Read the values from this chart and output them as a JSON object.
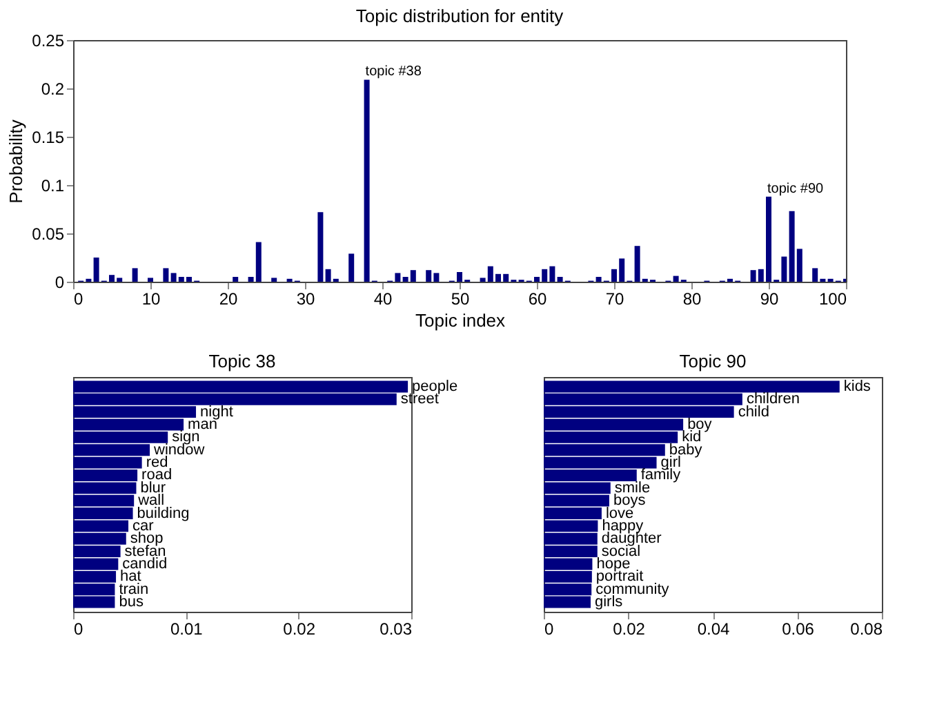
{
  "chart_data": [
    {
      "type": "bar",
      "title": "Topic distribution for entity",
      "xlabel": "Topic index",
      "ylabel": "Probability",
      "color": "#000080",
      "x": [
        1,
        2,
        3,
        4,
        5,
        6,
        7,
        8,
        9,
        10,
        11,
        12,
        13,
        14,
        15,
        16,
        17,
        18,
        19,
        20,
        21,
        22,
        23,
        24,
        25,
        26,
        27,
        28,
        29,
        30,
        31,
        32,
        33,
        34,
        35,
        36,
        37,
        38,
        39,
        40,
        41,
        42,
        43,
        44,
        45,
        46,
        47,
        48,
        49,
        50,
        51,
        52,
        53,
        54,
        55,
        56,
        57,
        58,
        59,
        60,
        61,
        62,
        63,
        64,
        65,
        66,
        67,
        68,
        69,
        70,
        71,
        72,
        73,
        74,
        75,
        76,
        77,
        78,
        79,
        80,
        81,
        82,
        83,
        84,
        85,
        86,
        87,
        88,
        89,
        90,
        91,
        92,
        93,
        94,
        95,
        96,
        97,
        98,
        99,
        100
      ],
      "values": [
        0.001,
        0.003,
        0.025,
        0.001,
        0.007,
        0.004,
        0,
        0.014,
        0,
        0.004,
        0,
        0.014,
        0.009,
        0.005,
        0.005,
        0.001,
        0,
        0,
        0,
        0,
        0.005,
        0,
        0.005,
        0.041,
        0,
        0.004,
        0,
        0.003,
        0.001,
        0,
        0,
        0.072,
        0.013,
        0.003,
        0,
        0.029,
        0,
        0.209,
        0.001,
        0,
        0.001,
        0.009,
        0.005,
        0.012,
        0,
        0.012,
        0.009,
        0,
        0.001,
        0.01,
        0.002,
        0,
        0.004,
        0.016,
        0.008,
        0.008,
        0.002,
        0.002,
        0.001,
        0.005,
        0.013,
        0.016,
        0.005,
        0.001,
        0,
        0,
        0.001,
        0.005,
        0.001,
        0.013,
        0.024,
        0.001,
        0.037,
        0.003,
        0.002,
        0,
        0.001,
        0.006,
        0.002,
        0,
        0,
        0.001,
        0,
        0.001,
        0.003,
        0.001,
        0,
        0.012,
        0.013,
        0.088,
        0.002,
        0.026,
        0.073,
        0.034,
        0,
        0.014,
        0.003,
        0.003,
        0.001,
        0.003
      ],
      "xlim": [
        0,
        100
      ],
      "xticks": [
        0,
        10,
        20,
        30,
        40,
        50,
        60,
        70,
        80,
        90,
        100
      ],
      "ylim": [
        0,
        0.25
      ],
      "yticks": [
        0,
        0.05,
        0.1,
        0.15,
        0.2,
        0.25
      ],
      "annotations": [
        {
          "text": "topic #38",
          "x": 38,
          "y": 0.209
        },
        {
          "text": "topic #90",
          "x": 90,
          "y": 0.088
        }
      ]
    },
    {
      "type": "bar",
      "orientation": "horizontal",
      "title": "Topic 38",
      "color": "#000080",
      "tick_labels": "x",
      "categories": [
        "people",
        "street",
        "night",
        "man",
        "sign",
        "window",
        "red",
        "road",
        "blur",
        "wall",
        "building",
        "car",
        "shop",
        "stefan",
        "candid",
        "hat",
        "train",
        "bus"
      ],
      "values": [
        0.0297,
        0.0287,
        0.0109,
        0.0098,
        0.0084,
        0.0068,
        0.0061,
        0.0057,
        0.0056,
        0.0054,
        0.0053,
        0.0049,
        0.0047,
        0.0042,
        0.004,
        0.0038,
        0.0037,
        0.0037
      ],
      "xlim": [
        0,
        0.03
      ],
      "xticks": [
        0,
        0.01,
        0.02,
        0.03
      ]
    },
    {
      "type": "bar",
      "orientation": "horizontal",
      "title": "Topic 90",
      "color": "#000080",
      "tick_labels": "x",
      "categories": [
        "kids",
        "children",
        "child",
        "boy",
        "kid",
        "baby",
        "girl",
        "family",
        "smile",
        "boys",
        "love",
        "happy",
        "daughter",
        "social",
        "hope",
        "portrait",
        "community",
        "girls"
      ],
      "values": [
        0.07,
        0.047,
        0.045,
        0.033,
        0.0317,
        0.0287,
        0.0267,
        0.022,
        0.0158,
        0.0155,
        0.0137,
        0.0128,
        0.0127,
        0.0127,
        0.0115,
        0.0114,
        0.0113,
        0.0111
      ],
      "xlim": [
        0,
        0.08
      ],
      "xticks": [
        0,
        0.02,
        0.04,
        0.06,
        0.08
      ]
    }
  ]
}
